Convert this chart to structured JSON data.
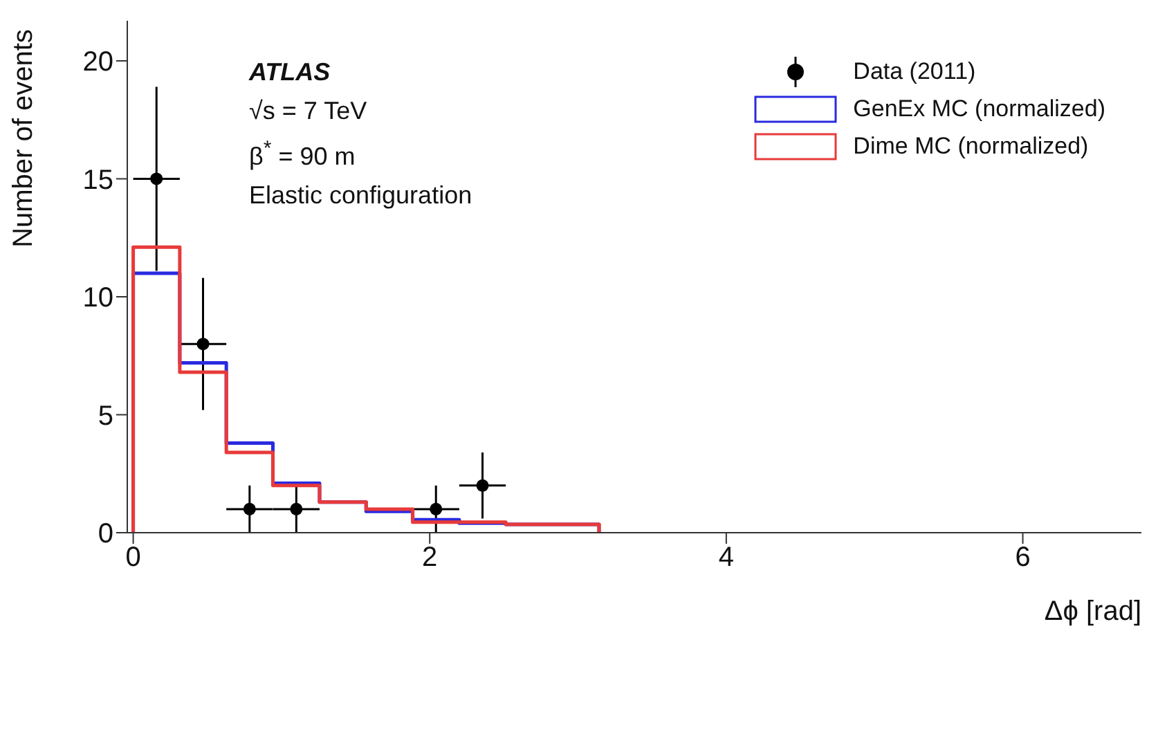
{
  "chart_data": {
    "type": "histogram",
    "xlabel": "Δϕ [rad]",
    "ylabel": "Number of events",
    "annotations": [
      "ATLAS",
      "√s = 7 TeV",
      "β$^{*}$ = 90 m",
      "Elastic configuration"
    ],
    "bins": [
      0,
      0.314,
      0.628,
      0.942,
      1.257,
      1.571,
      1.885,
      2.199,
      2.513,
      2.827,
      3.142
    ],
    "series": [
      {
        "name": "Data (2011)",
        "type": "scatter",
        "color": "#000000",
        "x": [
          0.157,
          0.471,
          0.785,
          1.1,
          2.042,
          2.356
        ],
        "values": [
          15,
          8,
          1,
          1,
          1,
          2
        ],
        "errors": [
          3.9,
          2.8,
          1,
          1,
          1,
          1.4
        ],
        "xerrors": [
          0.157,
          0.157,
          0.157,
          0.157,
          0.157,
          0.157
        ]
      },
      {
        "name": "GenEx MC (normalized)",
        "color": "#2a2ae0",
        "values": [
          11,
          7.2,
          3.8,
          2.1,
          1.3,
          0.9,
          0.55,
          0.4,
          0.35,
          0.35
        ]
      },
      {
        "name": "Dime MC (normalized)",
        "color": "#e83a3a",
        "values": [
          12.1,
          6.8,
          3.4,
          2,
          1.3,
          1,
          0.45,
          0.45,
          0.35,
          0.35
        ]
      }
    ],
    "xlim": [
      -0.04,
      6.8
    ],
    "xticks": [
      0,
      2,
      4,
      6
    ],
    "ylim": [
      0,
      21.7
    ],
    "yticks": [
      0,
      5,
      10,
      15,
      20
    ],
    "grid": false,
    "legend": "top right",
    "marker": "circle"
  }
}
